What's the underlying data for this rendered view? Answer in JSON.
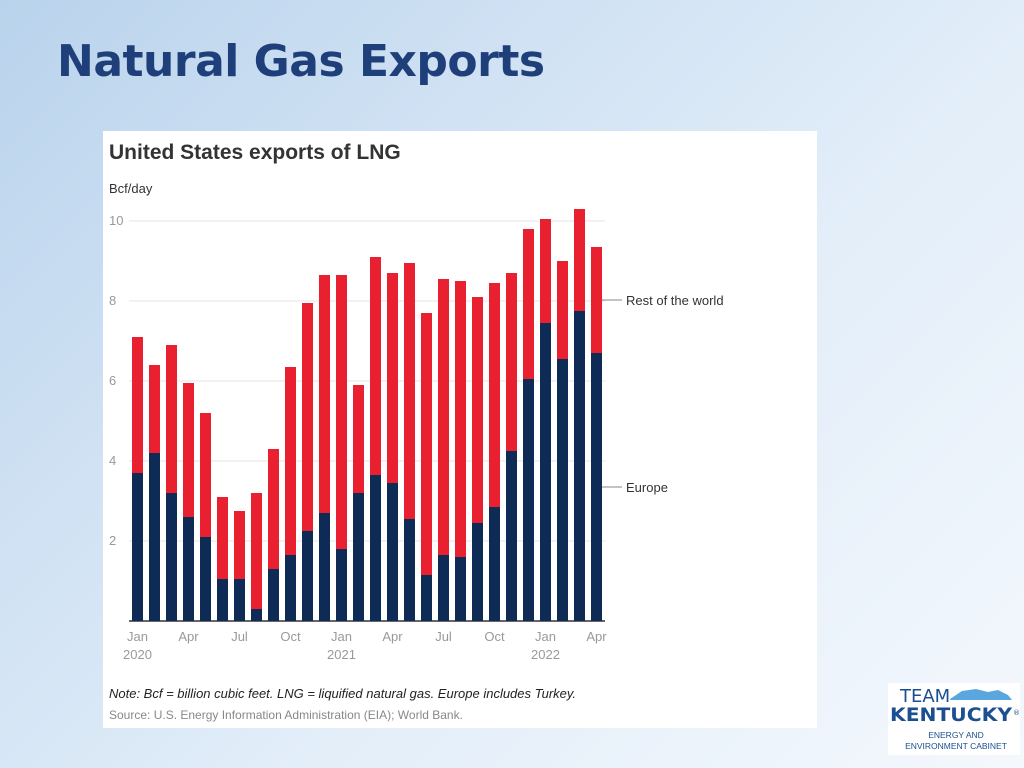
{
  "slide": {
    "title": "Natural Gas Exports"
  },
  "chart_data": {
    "type": "bar",
    "stacked": true,
    "title": "United States exports of LNG",
    "ylabel": "Bcf/day",
    "ylim": [
      0,
      10
    ],
    "yticks": [
      2,
      4,
      6,
      8,
      10
    ],
    "grid": true,
    "x": [
      "2020-01",
      "2020-02",
      "2020-03",
      "2020-04",
      "2020-05",
      "2020-06",
      "2020-07",
      "2020-08",
      "2020-09",
      "2020-10",
      "2020-11",
      "2020-12",
      "2021-01",
      "2021-02",
      "2021-03",
      "2021-04",
      "2021-05",
      "2021-06",
      "2021-07",
      "2021-08",
      "2021-09",
      "2021-10",
      "2021-11",
      "2021-12",
      "2022-01",
      "2022-02",
      "2022-03",
      "2022-04"
    ],
    "x_tick_labels": [
      {
        "index": 0,
        "month": "Jan",
        "year": "2020"
      },
      {
        "index": 3,
        "month": "Apr",
        "year": ""
      },
      {
        "index": 6,
        "month": "Jul",
        "year": ""
      },
      {
        "index": 9,
        "month": "Oct",
        "year": ""
      },
      {
        "index": 12,
        "month": "Jan",
        "year": "2021"
      },
      {
        "index": 15,
        "month": "Apr",
        "year": ""
      },
      {
        "index": 18,
        "month": "Jul",
        "year": ""
      },
      {
        "index": 21,
        "month": "Oct",
        "year": ""
      },
      {
        "index": 24,
        "month": "Jan",
        "year": "2022"
      },
      {
        "index": 27,
        "month": "Apr",
        "year": ""
      }
    ],
    "series": [
      {
        "name": "Europe",
        "color": "#0d2b55",
        "values": [
          3.7,
          4.2,
          3.2,
          2.6,
          2.1,
          1.05,
          1.05,
          0.3,
          1.3,
          1.65,
          2.25,
          2.7,
          1.8,
          3.2,
          3.65,
          3.45,
          2.55,
          1.15,
          1.65,
          1.6,
          2.45,
          2.85,
          4.25,
          6.05,
          7.45,
          6.55,
          7.75,
          6.7
        ]
      },
      {
        "name": "Rest of the world",
        "color": "#e8202f",
        "values": [
          3.4,
          2.2,
          3.7,
          3.35,
          3.1,
          2.05,
          1.7,
          2.9,
          3.0,
          4.7,
          5.7,
          5.95,
          6.85,
          2.7,
          5.45,
          5.25,
          6.4,
          6.55,
          6.9,
          6.9,
          5.65,
          5.6,
          4.45,
          3.75,
          2.6,
          2.45,
          2.55,
          2.65
        ]
      }
    ],
    "legend": {
      "placement": "right",
      "style": "direct labels"
    },
    "note": "Note: Bcf = billion cubic feet. LNG = liquified natural gas. Europe includes Turkey.",
    "source": "Source: U.S. Energy Information Administration (EIA); World Bank."
  },
  "logo": {
    "line1": "TEAM",
    "line2": "KENTUCKY",
    "line3": "ENERGY AND",
    "line4": "ENVIRONMENT CABINET",
    "mark": "®"
  },
  "colors": {
    "title": "#1f3f7a",
    "europe": "#0d2b55",
    "rest": "#e8202f",
    "logo_blue": "#1c4f8f"
  }
}
